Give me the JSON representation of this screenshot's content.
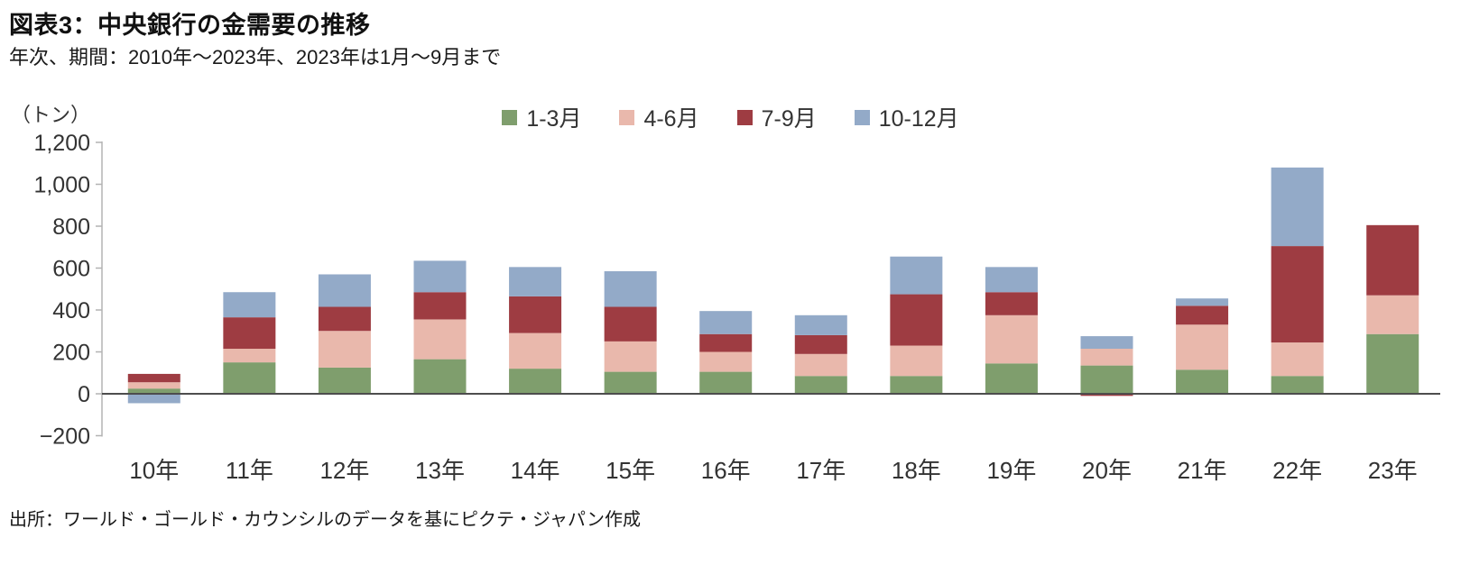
{
  "header": {
    "title": "図表3：中央銀行の金需要の推移",
    "subtitle": "年次、期間：2010年～2023年、2023年は1月～9月まで"
  },
  "footer": {
    "source": "出所：ワールド・ゴールド・カウンシルのデータを基にピクテ・ジャパン作成"
  },
  "chart_data": {
    "type": "bar",
    "stacked": true,
    "title": "図表3：中央銀行の金需要の推移",
    "unit_label": "（トン）",
    "xlabel": "",
    "ylabel": "トン",
    "categories": [
      "10年",
      "11年",
      "12年",
      "13年",
      "14年",
      "15年",
      "16年",
      "17年",
      "18年",
      "19年",
      "20年",
      "21年",
      "22年",
      "23年"
    ],
    "series": [
      {
        "name": "1-3月",
        "color": "#7f9e6d",
        "values": [
          25,
          150,
          125,
          165,
          120,
          105,
          105,
          85,
          85,
          145,
          135,
          115,
          85,
          285
        ]
      },
      {
        "name": "4-6月",
        "color": "#e9b8ac",
        "values": [
          30,
          65,
          175,
          190,
          170,
          145,
          95,
          105,
          145,
          230,
          80,
          215,
          160,
          185
        ]
      },
      {
        "name": "7-9月",
        "color": "#9e3c42",
        "values": [
          40,
          150,
          115,
          130,
          175,
          165,
          85,
          90,
          245,
          110,
          -10,
          90,
          460,
          335
        ]
      },
      {
        "name": "10-12月",
        "color": "#93aac8",
        "values": [
          -45,
          120,
          155,
          150,
          140,
          170,
          110,
          95,
          180,
          120,
          60,
          35,
          375,
          0
        ]
      }
    ],
    "ylim": [
      -200,
      1200
    ],
    "ytick_step": 200,
    "ytick_labels": [
      "−200",
      "0",
      "200",
      "400",
      "600",
      "800",
      "1,000",
      "1,200"
    ],
    "legend_position": "top",
    "grid": false
  }
}
